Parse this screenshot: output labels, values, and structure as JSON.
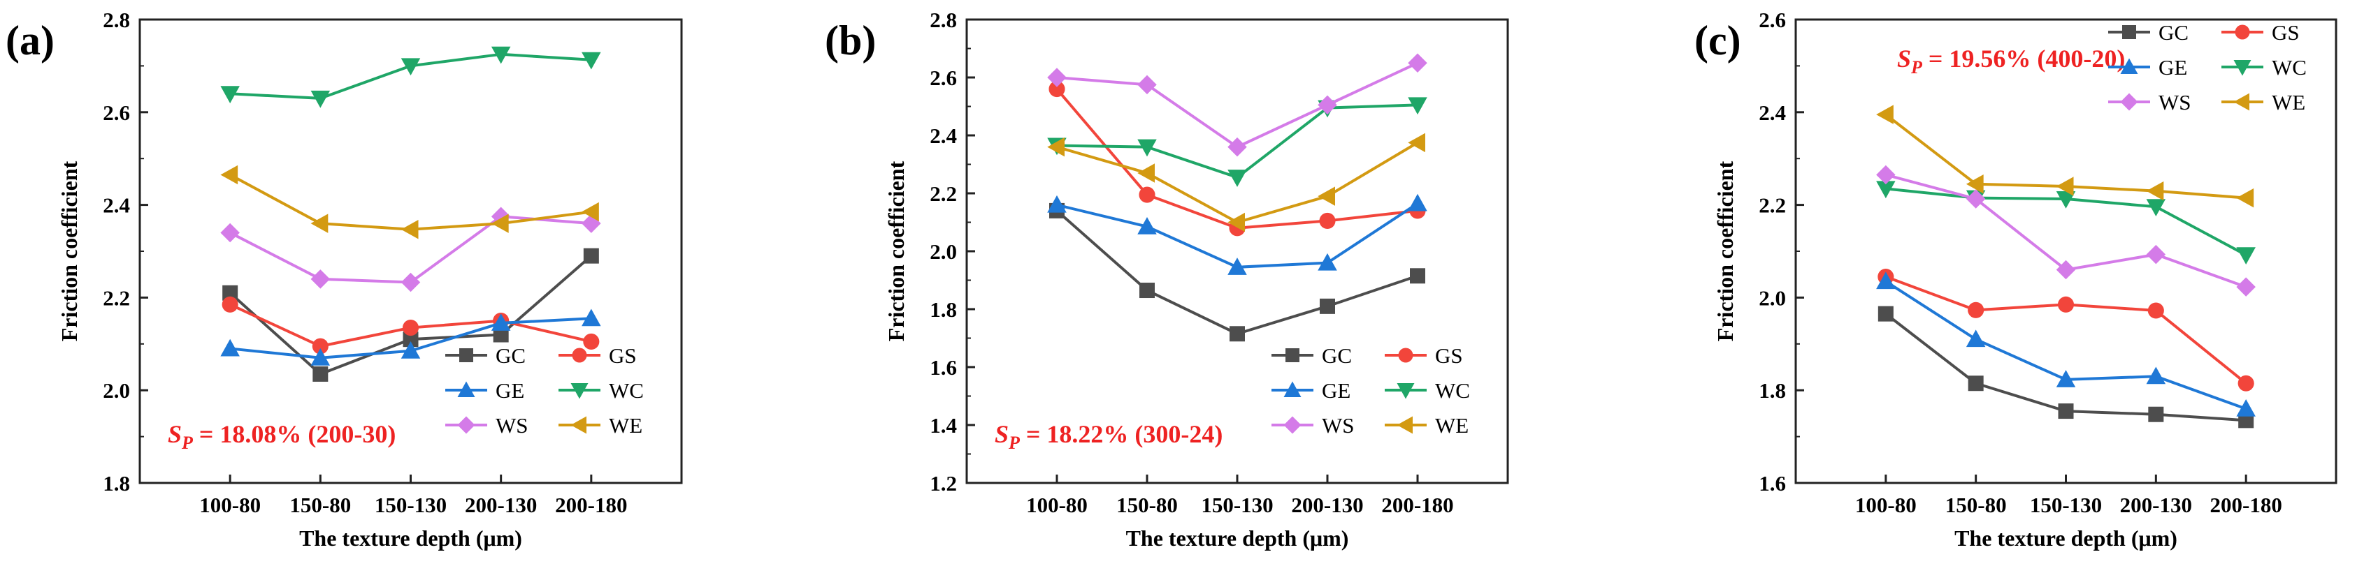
{
  "series_styles": {
    "GC": {
      "color": "#4d4d4d",
      "marker": "square"
    },
    "GS": {
      "color": "#f2453b",
      "marker": "circle"
    },
    "GE": {
      "color": "#1f78d6",
      "marker": "triangle-up"
    },
    "WC": {
      "color": "#1fa667",
      "marker": "triangle-down"
    },
    "WS": {
      "color": "#d47be8",
      "marker": "diamond"
    },
    "WE": {
      "color": "#d39a12",
      "marker": "triangle-left"
    }
  },
  "annotation_color": "#ee2222",
  "chart_data": [
    {
      "panel": "(a)",
      "type": "line",
      "categories": [
        "100-80",
        "150-80",
        "150-130",
        "200-130",
        "200-180"
      ],
      "xlabel": "The texture depth (μm)",
      "ylabel": "Friction coefficient",
      "ylim": [
        1.8,
        2.8
      ],
      "yticks": [
        "1.8",
        "2.0",
        "2.2",
        "2.4",
        "2.6",
        "2.8"
      ],
      "annotation": {
        "symbol": "S",
        "subscript": "P",
        "text": " = 18.08% (200-30)"
      },
      "legend_position": "bottom-right",
      "series": [
        {
          "name": "GC",
          "values": [
            2.21,
            2.035,
            2.11,
            2.12,
            2.29
          ]
        },
        {
          "name": "GS",
          "values": [
            2.185,
            2.095,
            2.135,
            2.15,
            2.105
          ]
        },
        {
          "name": "GE",
          "values": [
            2.09,
            2.07,
            2.085,
            2.145,
            2.155
          ]
        },
        {
          "name": "WC",
          "values": [
            2.64,
            2.63,
            2.7,
            2.725,
            2.713
          ]
        },
        {
          "name": "WS",
          "values": [
            2.34,
            2.24,
            2.233,
            2.375,
            2.36
          ]
        },
        {
          "name": "WE",
          "values": [
            2.465,
            2.36,
            2.347,
            2.36,
            2.385
          ]
        }
      ]
    },
    {
      "panel": "(b)",
      "type": "line",
      "categories": [
        "100-80",
        "150-80",
        "150-130",
        "200-130",
        "200-180"
      ],
      "xlabel": "The texture depth (μm)",
      "ylabel": "Friction coefficient",
      "ylim": [
        1.2,
        2.8
      ],
      "yticks": [
        "1.2",
        "1.4",
        "1.6",
        "1.8",
        "2.0",
        "2.2",
        "2.4",
        "2.6",
        "2.8"
      ],
      "annotation": {
        "symbol": "S",
        "subscript": "P",
        "text": " = 18.22% (300-24)"
      },
      "legend_position": "bottom-right",
      "series": [
        {
          "name": "GC",
          "values": [
            2.14,
            1.865,
            1.715,
            1.81,
            1.915
          ]
        },
        {
          "name": "GS",
          "values": [
            2.56,
            2.195,
            2.08,
            2.105,
            2.14
          ]
        },
        {
          "name": "GE",
          "values": [
            2.16,
            2.085,
            1.945,
            1.96,
            2.165
          ]
        },
        {
          "name": "WC",
          "values": [
            2.365,
            2.36,
            2.255,
            2.495,
            2.505
          ]
        },
        {
          "name": "WS",
          "values": [
            2.6,
            2.575,
            2.36,
            2.505,
            2.65
          ]
        },
        {
          "name": "WE",
          "values": [
            2.36,
            2.27,
            2.1,
            2.19,
            2.375
          ]
        }
      ]
    },
    {
      "panel": "(c)",
      "type": "line",
      "categories": [
        "100-80",
        "150-80",
        "150-130",
        "200-130",
        "200-180"
      ],
      "xlabel": "The texture depth (μm)",
      "ylabel": "Friction coefficient",
      "ylim": [
        1.6,
        2.6
      ],
      "yticks": [
        "1.6",
        "1.8",
        "2.0",
        "2.2",
        "2.4",
        "2.6"
      ],
      "annotation": {
        "symbol": "S",
        "subscript": "P",
        "text": " = 19.56% (400-20)"
      },
      "legend_position": "top-right",
      "series": [
        {
          "name": "GC",
          "values": [
            1.965,
            1.815,
            1.755,
            1.748,
            1.735
          ]
        },
        {
          "name": "GS",
          "values": [
            2.045,
            1.973,
            1.985,
            1.972,
            1.815
          ]
        },
        {
          "name": "GE",
          "values": [
            2.035,
            1.91,
            1.823,
            1.83,
            1.76
          ]
        },
        {
          "name": "WC",
          "values": [
            2.235,
            2.215,
            2.213,
            2.196,
            2.092
          ]
        },
        {
          "name": "WS",
          "values": [
            2.265,
            2.213,
            2.06,
            2.093,
            2.023
          ]
        },
        {
          "name": "WE",
          "values": [
            2.395,
            2.245,
            2.24,
            2.23,
            2.215
          ]
        }
      ]
    }
  ]
}
